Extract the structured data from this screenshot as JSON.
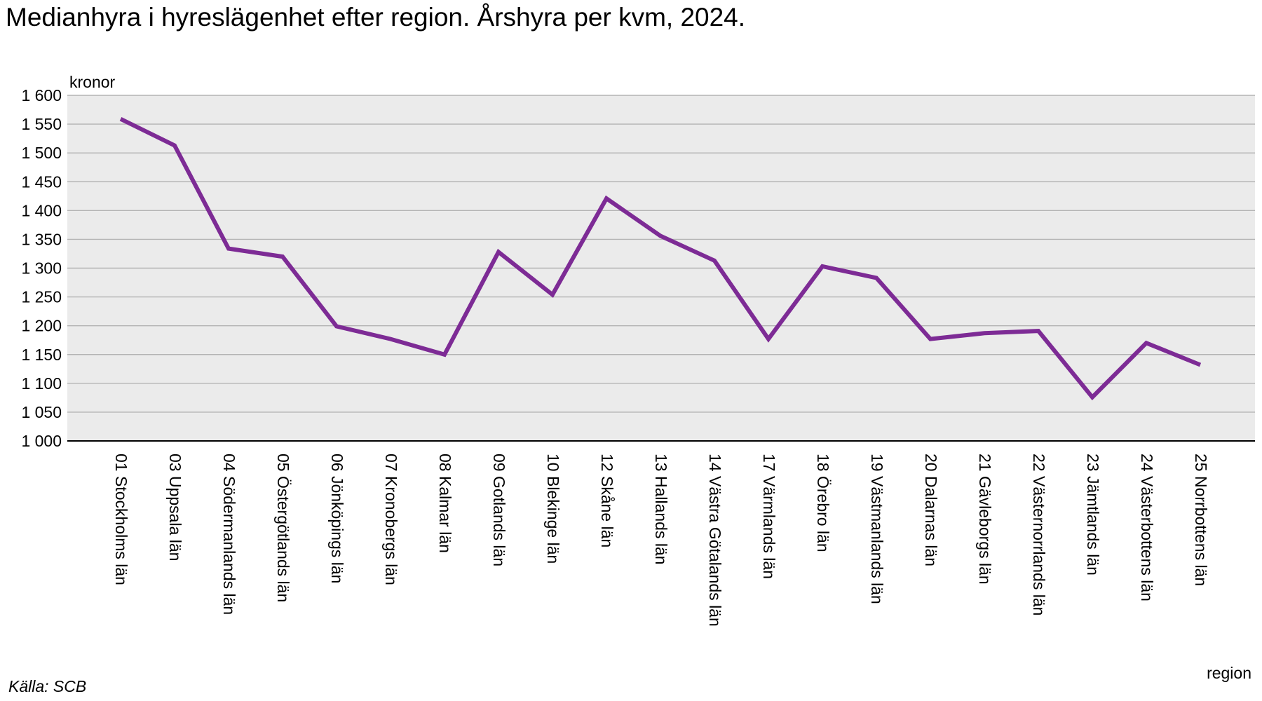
{
  "chart_data": {
    "type": "line",
    "title": "Medianhyra i hyreslägenhet efter region. Årshyra per kvm, 2024.",
    "ylabel": "kronor",
    "xlabel": "region",
    "ylim": [
      1000,
      1600
    ],
    "yticks": [
      1000,
      1050,
      1100,
      1150,
      1200,
      1250,
      1300,
      1350,
      1400,
      1450,
      1500,
      1550,
      1600
    ],
    "ytick_labels": [
      "1 000",
      "1 050",
      "1 100",
      "1 150",
      "1 200",
      "1 250",
      "1 300",
      "1 350",
      "1 400",
      "1 450",
      "1 500",
      "1 550",
      "1 600"
    ],
    "grid": true,
    "categories": [
      "01 Stockholms län",
      "03 Uppsala län",
      "04 Södermanlands län",
      "05 Östergötlands län",
      "06 Jönköpings län",
      "07 Kronobergs län",
      "08 Kalmar län",
      "09 Gotlands län",
      "10 Blekinge län",
      "12 Skåne län",
      "13 Hallands län",
      "14 Västra Götalands län",
      "17 Värmlands län",
      "18 Örebro län",
      "19 Västmanlands län",
      "20 Dalarnas län",
      "21 Gävleborgs län",
      "22 Västernorrlands län",
      "23 Jämtlands län",
      "24 Västerbottens län",
      "25 Norrbottens län"
    ],
    "series": [
      {
        "values": [
          1559,
          1513,
          1334,
          1320,
          1199,
          1177,
          1150,
          1328,
          1254,
          1421,
          1356,
          1313,
          1177,
          1303,
          1283,
          1177,
          1187,
          1191,
          1076,
          1170,
          1132
        ]
      }
    ]
  },
  "source": "Källa: SCB",
  "colors": {
    "line": "#7d2b95",
    "plot_background": "#ebebeb",
    "gridline": "#b4b4b4",
    "axis": "#000000"
  }
}
